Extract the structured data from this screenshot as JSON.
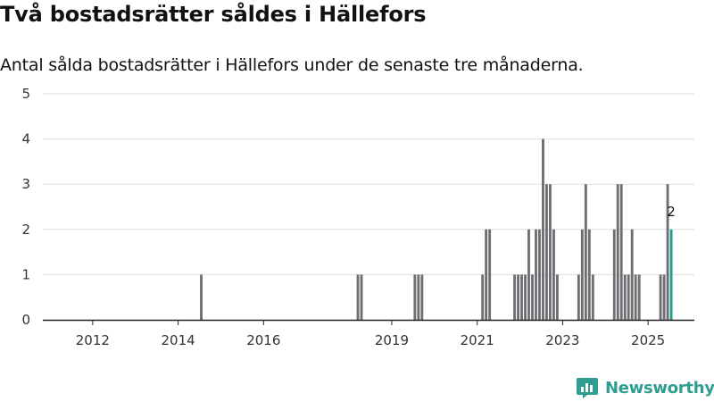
{
  "header": {
    "title": "Två bostadsrätter såldes i Hällefors",
    "subtitle": "Antal sålda bostadsrätter i Hällefors under de senaste tre månaderna."
  },
  "brand": {
    "name": "Newsworthy",
    "icon": "newsworthy-logo-icon"
  },
  "colors": {
    "bar": "#6e6e73",
    "highlight": "#1f9e8f",
    "grid": "#dddddd",
    "axis": "#222222",
    "brand": "#2f9e92"
  },
  "chart_data": {
    "type": "bar",
    "title": "Två bostadsrätter såldes i Hällefors",
    "subtitle": "Antal sålda bostadsrätter i Hällefors under de senaste tre månaderna.",
    "xlabel": "",
    "ylabel": "",
    "xlim": [
      "2011-05",
      "2026-08"
    ],
    "ylim": [
      0,
      5
    ],
    "yticks": [
      0,
      1,
      2,
      3,
      4,
      5
    ],
    "xticks": [
      "2012",
      "2014",
      "2016",
      "2019",
      "2021",
      "2023",
      "2025"
    ],
    "grid": true,
    "legend": "none",
    "series": [
      {
        "values": [
          {
            "x": "2015-01",
            "y": 1
          },
          {
            "x": "2018-09",
            "y": 1
          },
          {
            "x": "2018-10",
            "y": 1
          },
          {
            "x": "2020-01",
            "y": 1
          },
          {
            "x": "2020-02",
            "y": 1
          },
          {
            "x": "2020-03",
            "y": 1
          },
          {
            "x": "2021-08",
            "y": 1
          },
          {
            "x": "2021-09",
            "y": 2
          },
          {
            "x": "2021-10",
            "y": 2
          },
          {
            "x": "2022-05",
            "y": 1
          },
          {
            "x": "2022-06",
            "y": 1
          },
          {
            "x": "2022-07",
            "y": 1
          },
          {
            "x": "2022-08",
            "y": 1
          },
          {
            "x": "2022-09",
            "y": 2
          },
          {
            "x": "2022-10",
            "y": 1
          },
          {
            "x": "2022-11",
            "y": 2
          },
          {
            "x": "2022-12",
            "y": 2
          },
          {
            "x": "2023-01",
            "y": 4
          },
          {
            "x": "2023-02",
            "y": 3
          },
          {
            "x": "2023-03",
            "y": 3
          },
          {
            "x": "2023-04",
            "y": 2
          },
          {
            "x": "2023-05",
            "y": 1
          },
          {
            "x": "2023-11",
            "y": 1
          },
          {
            "x": "2023-12",
            "y": 2
          },
          {
            "x": "2024-01",
            "y": 3
          },
          {
            "x": "2024-02",
            "y": 2
          },
          {
            "x": "2024-03",
            "y": 1
          },
          {
            "x": "2024-09",
            "y": 2
          },
          {
            "x": "2024-10",
            "y": 3
          },
          {
            "x": "2024-11",
            "y": 3
          },
          {
            "x": "2024-12",
            "y": 1
          },
          {
            "x": "2025-01",
            "y": 1
          },
          {
            "x": "2025-02",
            "y": 2
          },
          {
            "x": "2025-03",
            "y": 1
          },
          {
            "x": "2025-04",
            "y": 1
          },
          {
            "x": "2025-10",
            "y": 1
          },
          {
            "x": "2025-11",
            "y": 1
          },
          {
            "x": "2025-12",
            "y": 3
          },
          {
            "x": "2026-01",
            "y": 2,
            "highlight": true,
            "label": "2"
          }
        ]
      }
    ]
  }
}
